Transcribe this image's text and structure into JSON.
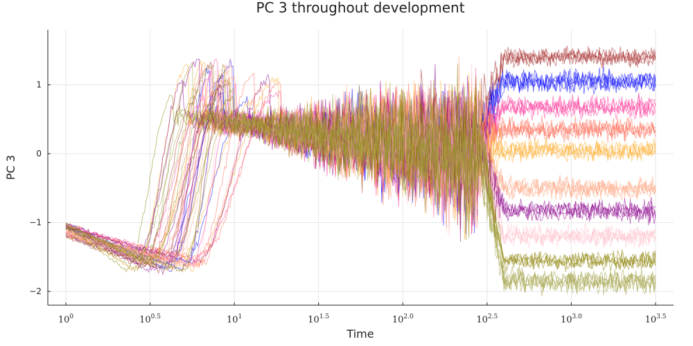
{
  "chart_data": {
    "type": "line",
    "title": "PC 3 throughout development",
    "xlabel": "Time",
    "ylabel": "PC 3",
    "x_scale": "log10",
    "xlim": [
      1,
      3162.28
    ],
    "ylim": [
      -2.2,
      1.8
    ],
    "x_ticks": [
      {
        "base": "10",
        "exp": "0"
      },
      {
        "base": "10",
        "exp": "0.5"
      },
      {
        "base": "10",
        "exp": "1"
      },
      {
        "base": "10",
        "exp": "1.5"
      },
      {
        "base": "10",
        "exp": "2.0"
      },
      {
        "base": "10",
        "exp": "2.5"
      },
      {
        "base": "10",
        "exp": "3.0"
      },
      {
        "base": "10",
        "exp": "3.5"
      }
    ],
    "x_tick_values": [
      1,
      3.162,
      10,
      31.62,
      100,
      316.2,
      1000,
      3162.28
    ],
    "y_ticks": [
      -2,
      -1,
      0,
      1
    ],
    "y_tick_labels": [
      "−2",
      "−1",
      "0",
      "1"
    ],
    "grid": true,
    "legend": "none",
    "series_summary": {
      "initial_level": -1.1,
      "initial_level_log10_time_range": [
        0,
        0.4
      ],
      "minimum_level": -1.6,
      "rise_log10_time_range": [
        0.35,
        1.3
      ],
      "peak_level": 1.4,
      "diverge_log10_time": 2.45,
      "end_log10_time": 3.5
    },
    "series": [
      {
        "color": "#a52a2a",
        "final_level": 1.4,
        "noise": 0.07
      },
      {
        "color": "#0000ff",
        "final_level": 1.05,
        "noise": 0.09
      },
      {
        "color": "#ff3399",
        "final_level": 0.68,
        "noise": 0.08
      },
      {
        "color": "#ff6650",
        "final_level": 0.35,
        "noise": 0.08
      },
      {
        "color": "#ffaa22",
        "final_level": 0.05,
        "noise": 0.08
      },
      {
        "color": "#ffa07a",
        "final_level": -0.5,
        "noise": 0.08
      },
      {
        "color": "#8b008b",
        "final_level": -0.83,
        "noise": 0.08
      },
      {
        "color": "#ffc0cb",
        "final_level": -1.2,
        "noise": 0.08
      },
      {
        "color": "#8b8000",
        "final_level": -1.55,
        "noise": 0.07
      },
      {
        "color": "#9b9b3a",
        "final_level": -1.85,
        "noise": 0.09
      }
    ]
  }
}
